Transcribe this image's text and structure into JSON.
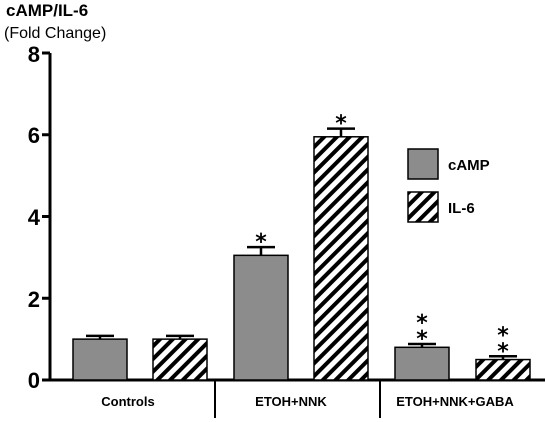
{
  "chart_data": {
    "type": "bar",
    "title": "cAMP/IL-6",
    "ylabel": "(Fold Change)",
    "ylim": [
      0,
      8
    ],
    "yticks": [
      "0",
      "2",
      "4",
      "6",
      "8"
    ],
    "categories": [
      "Controls",
      "ETOH+NNK",
      "ETOH+NNK+GABA"
    ],
    "series": [
      {
        "name": "cAMP",
        "fill": "solid",
        "color": "#8c8c8c",
        "values": [
          1.0,
          3.05,
          0.8
        ],
        "errors": [
          0.08,
          0.2,
          0.08
        ],
        "significance": [
          "",
          "*",
          "**"
        ]
      },
      {
        "name": "IL-6",
        "fill": "hatched",
        "color": "#000000",
        "values": [
          1.0,
          5.95,
          0.5
        ],
        "errors": [
          0.08,
          0.2,
          0.08
        ],
        "significance": [
          "",
          "*",
          "**"
        ]
      }
    ],
    "legend": "right",
    "grid": false
  }
}
